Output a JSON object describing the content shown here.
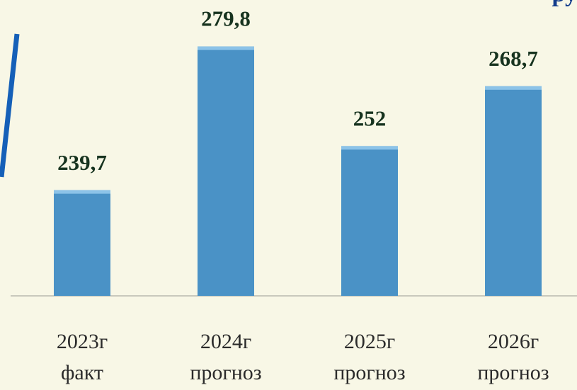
{
  "chart_data": {
    "type": "bar",
    "title": "ру",
    "categories": [
      "2023г факт",
      "2024г прогноз",
      "2025г прогноз",
      "2026г прогноз"
    ],
    "values": [
      239.7,
      279.8,
      252,
      268.7
    ],
    "value_labels": [
      "239,7",
      "279,8",
      "252",
      "268,7"
    ],
    "color": "#4a92c6",
    "ylim": [
      210.2,
      290
    ]
  }
}
